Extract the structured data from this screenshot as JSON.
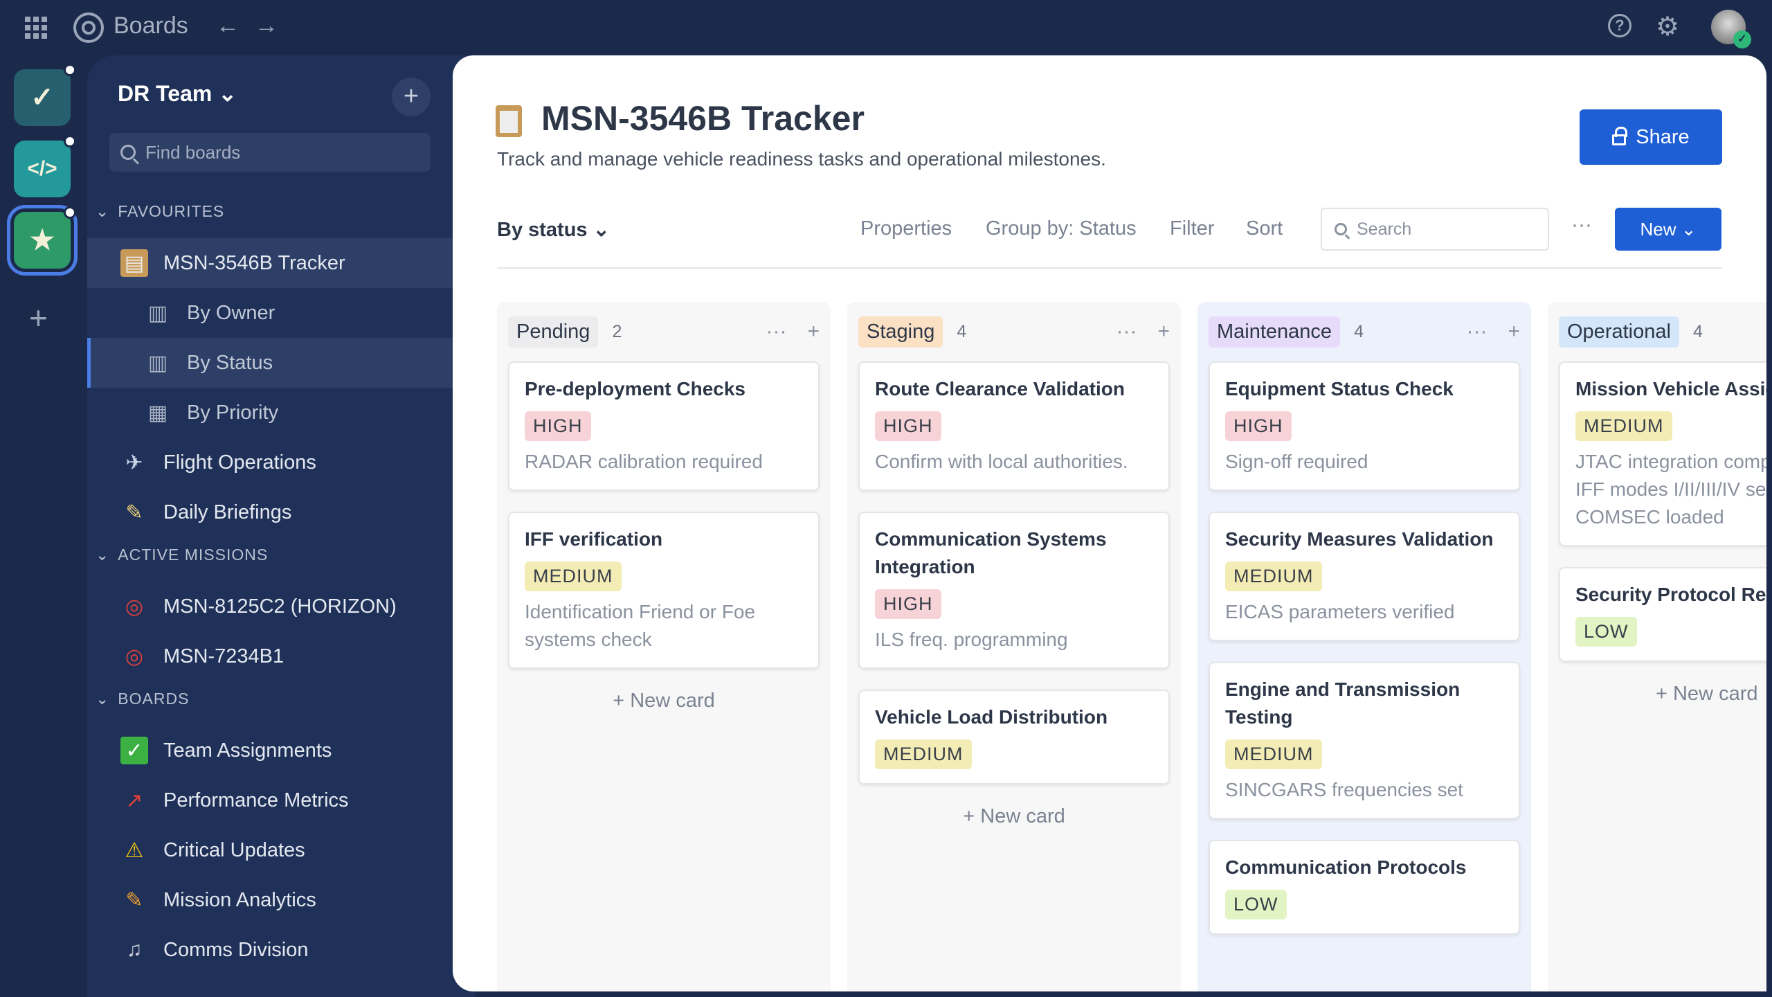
{
  "topbar": {
    "app_title": "Boards",
    "back": "←",
    "forward": "→",
    "help": "?",
    "settings": "⚙",
    "avatar_badge": "✓"
  },
  "rail": {
    "workspaces": [
      {
        "icon": "shield-check-icon",
        "glyph": "✓",
        "color": "#265f6e"
      },
      {
        "icon": "code-hexagon-icon",
        "glyph": "</>",
        "color": "#23999c"
      },
      {
        "icon": "star-badge-icon",
        "glyph": "★",
        "color": "#2e9a68"
      }
    ],
    "add": "+"
  },
  "sidebar": {
    "team": "DR Team ⌄",
    "add": "+",
    "find_placeholder": "Find boards",
    "sections": [
      {
        "label": "FAVOURITES"
      },
      {
        "label": "ACTIVE MISSIONS"
      },
      {
        "label": "BOARDS"
      }
    ],
    "items": [
      {
        "label": "MSN-3546B Tracker",
        "icon": "clipboard-icon",
        "glyph": "▤",
        "color": "#c79a5a"
      },
      {
        "label": "By Owner",
        "icon": "board-view-icon",
        "glyph": "▥",
        "color": "#aab3c5"
      },
      {
        "label": "By Status",
        "icon": "board-view-icon",
        "glyph": "▥",
        "color": "#aab3c5"
      },
      {
        "label": "By Priority",
        "icon": "table-view-icon",
        "glyph": "▦",
        "color": "#aab3c5"
      },
      {
        "label": "Flight Operations",
        "icon": "airplane-icon",
        "glyph": "✈",
        "color": "#c8d4e6"
      },
      {
        "label": "Daily Briefings",
        "icon": "memo-icon",
        "glyph": "✎",
        "color": "#f0d27a"
      },
      {
        "label": "MSN-8125C2 (HORIZON)",
        "icon": "target-icon",
        "glyph": "◎",
        "color": "#e0403a"
      },
      {
        "label": "MSN-7234B1",
        "icon": "target-icon",
        "glyph": "◎",
        "color": "#e0403a"
      },
      {
        "label": "Team Assignments",
        "icon": "check-box-icon",
        "glyph": "✓",
        "color": "#3cb043"
      },
      {
        "label": "Performance Metrics",
        "icon": "chart-up-icon",
        "glyph": "↗",
        "color": "#e0403a"
      },
      {
        "label": "Critical Updates",
        "icon": "warning-icon",
        "glyph": "⚠",
        "color": "#f4c20d"
      },
      {
        "label": "Mission Analytics",
        "icon": "pencil-icon",
        "glyph": "✎",
        "color": "#f0a030"
      },
      {
        "label": "Comms Division",
        "icon": "microphone-icon",
        "glyph": "♫",
        "color": "#c8ccd4"
      }
    ]
  },
  "main": {
    "title": "MSN-3546B Tracker",
    "subtitle": "Track and manage vehicle readiness tasks and operational milestones.",
    "share": "Share",
    "view": "By status ⌄",
    "tools": [
      "Properties",
      "Group by: Status",
      "Filter",
      "Sort"
    ],
    "search_placeholder": "Search",
    "more": "···",
    "new": "New ⌄",
    "new_card": "+  New card"
  },
  "priority_colors": {
    "HIGH": "#f7d3d7",
    "MEDIUM": "#f3edb5",
    "LOW": "#e3f4c4"
  },
  "columns": [
    {
      "title": "Pending",
      "count": "2",
      "tag_color": "#ececee",
      "bg": "#f7f7f7",
      "cards": [
        {
          "title": "Pre-deployment Checks",
          "priority": "HIGH",
          "desc": "RADAR calibration required"
        },
        {
          "title": "IFF verification",
          "priority": "MEDIUM",
          "desc": "Identification Friend or Foe\nsystems check"
        }
      ]
    },
    {
      "title": "Staging",
      "count": "4",
      "tag_color": "#fbe0c4",
      "bg": "#f7f7f7",
      "cards": [
        {
          "title": "Route Clearance Validation",
          "priority": "HIGH",
          "desc": "Confirm with local authorities."
        },
        {
          "title": "Communication Systems Integration",
          "priority": "HIGH",
          "desc": "ILS freq. programming",
          "wrap": true
        },
        {
          "title": "Vehicle Load Distribution",
          "priority": "MEDIUM",
          "desc": ""
        }
      ]
    },
    {
      "title": "Maintenance",
      "count": "4",
      "tag_color": "#e6dbf8",
      "bg": "#edf1fb",
      "cards": [
        {
          "title": "Equipment Status Check",
          "priority": "HIGH",
          "desc": "Sign-off required"
        },
        {
          "title": "Security Measures Validation",
          "priority": "MEDIUM",
          "desc": "EICAS parameters verified",
          "wrap": true
        },
        {
          "title": "Engine and Transmission Testing",
          "priority": "MEDIUM",
          "desc": "SINCGARS frequencies set",
          "wrap": true
        },
        {
          "title": "Communication Protocols",
          "priority": "LOW",
          "desc": ""
        }
      ]
    },
    {
      "title": "Operational",
      "count": "4",
      "tag_color": "#d4e7fa",
      "bg": "#f7f7f7",
      "cards": [
        {
          "title": "Mission Vehicle Assig",
          "priority": "MEDIUM",
          "desc": "JTAC integration comp\nIFF modes I/II/III/IV se\nCOMSEC loaded"
        },
        {
          "title": "Security Protocol Rev",
          "priority": "LOW",
          "desc": ""
        }
      ]
    }
  ]
}
